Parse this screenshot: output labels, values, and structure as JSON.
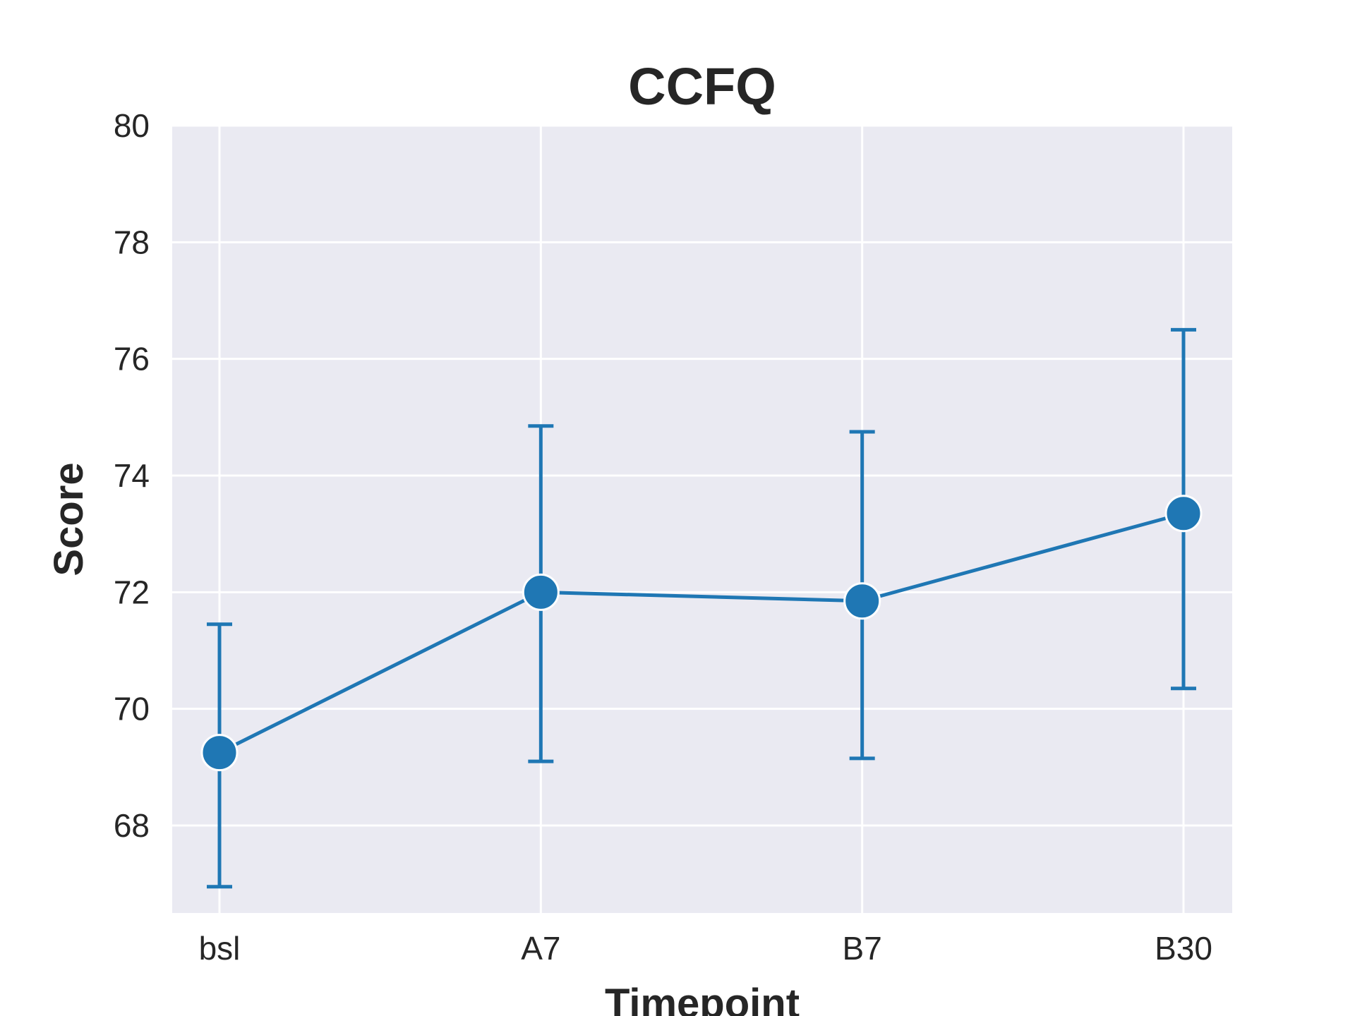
{
  "chart_data": {
    "type": "line",
    "title": "CCFQ",
    "xlabel": "Timepoint",
    "ylabel": "Score",
    "categories": [
      "bsl",
      "A7",
      "B7",
      "B30"
    ],
    "series": [
      {
        "values": [
          69.25,
          72.0,
          71.85,
          73.35
        ],
        "error_low": [
          66.95,
          69.1,
          69.15,
          70.35
        ],
        "error_high": [
          71.45,
          74.85,
          74.75,
          76.5
        ],
        "color": "#1f77b4"
      }
    ],
    "ylim": [
      66.5,
      80
    ],
    "yticks": [
      68,
      70,
      72,
      74,
      76,
      78,
      80
    ],
    "grid": true,
    "background_color": "#eaeaf2",
    "grid_color": "#ffffff"
  }
}
